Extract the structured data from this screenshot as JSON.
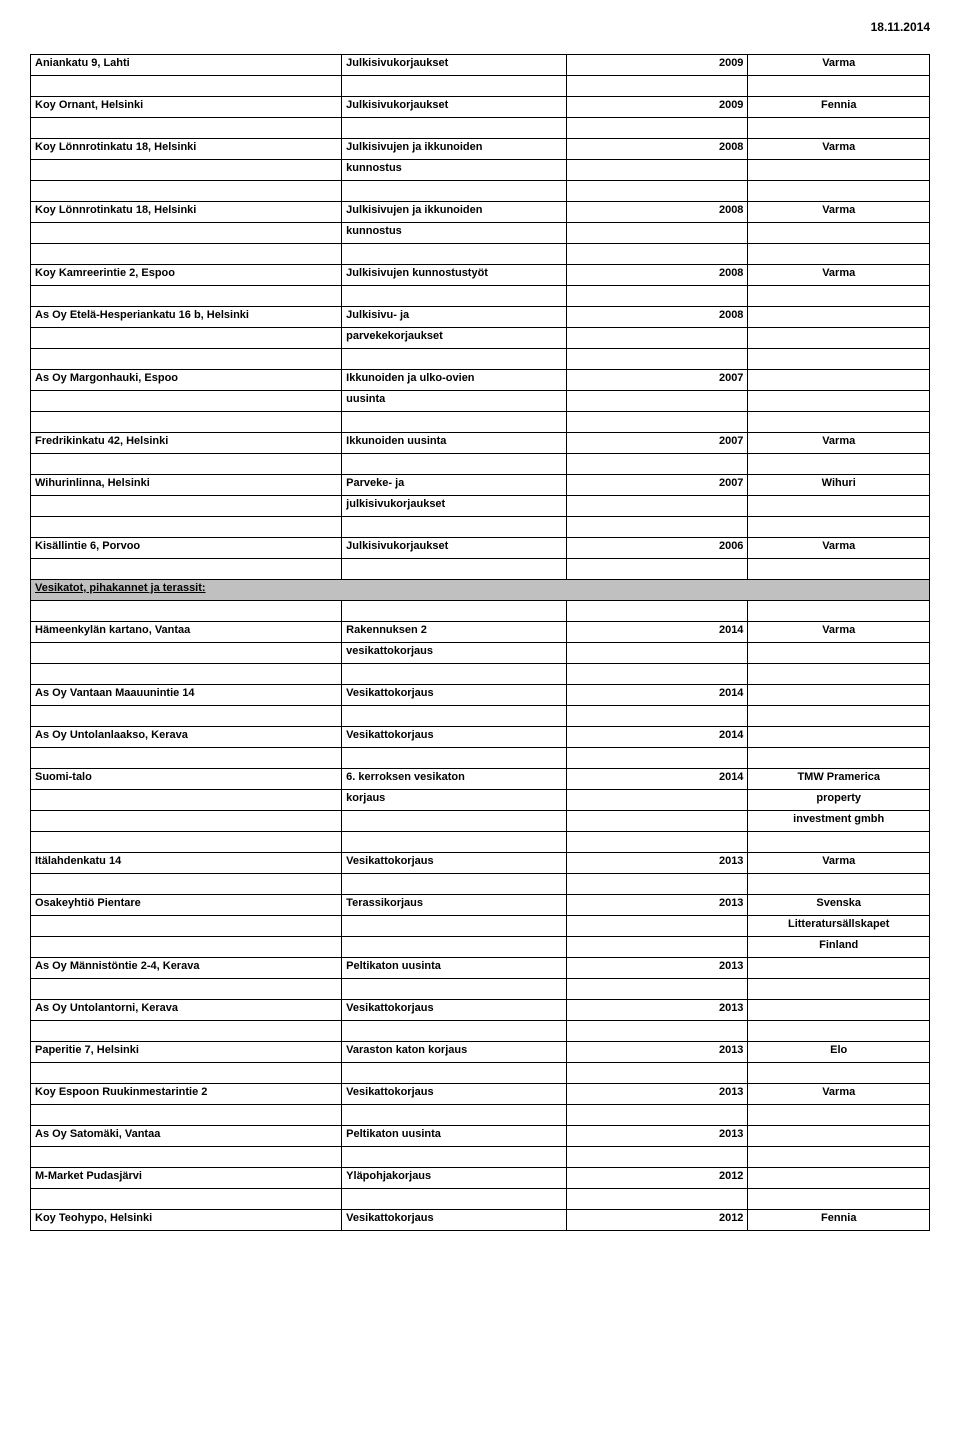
{
  "date": "18.11.2014",
  "section_header": "Vesikatot, pihakannet ja terassit:",
  "rows": [
    {
      "type": "entry",
      "c0": "Aniankatu 9, Lahti",
      "c1": "Julkisivukorjaukset",
      "c2": "2009",
      "c3": "Varma"
    },
    {
      "type": "blank"
    },
    {
      "type": "entry",
      "c0": "Koy Ornant, Helsinki",
      "c1": "Julkisivukorjaukset",
      "c2": "2009",
      "c3": "Fennia"
    },
    {
      "type": "blank"
    },
    {
      "type": "entry",
      "c0": "Koy Lönnrotinkatu 18, Helsinki",
      "c1": "Julkisivujen ja ikkunoiden",
      "c2": "2008",
      "c3": "Varma"
    },
    {
      "type": "sub",
      "c1": "kunnostus"
    },
    {
      "type": "blank"
    },
    {
      "type": "entry",
      "c0": "Koy Lönnrotinkatu 18, Helsinki",
      "c1": "Julkisivujen ja ikkunoiden",
      "c2": "2008",
      "c3": "Varma"
    },
    {
      "type": "sub",
      "c1": "kunnostus"
    },
    {
      "type": "blank"
    },
    {
      "type": "entry",
      "c0": "Koy Kamreerintie 2, Espoo",
      "c1": "Julkisivujen kunnostustyöt",
      "c2": "2008",
      "c3": "Varma"
    },
    {
      "type": "blank"
    },
    {
      "type": "entry",
      "c0": "As Oy Etelä-Hesperiankatu 16 b, Helsinki",
      "c1": "Julkisivu- ja",
      "c2": "2008",
      "c3": ""
    },
    {
      "type": "sub",
      "c1": "parvekekorjaukset"
    },
    {
      "type": "blank"
    },
    {
      "type": "entry",
      "c0": "As Oy Margonhauki, Espoo",
      "c1": "Ikkunoiden ja ulko-ovien",
      "c2": "2007",
      "c3": ""
    },
    {
      "type": "sub",
      "c1": "uusinta"
    },
    {
      "type": "blank"
    },
    {
      "type": "entry",
      "c0": "Fredrikinkatu 42, Helsinki",
      "c1": "Ikkunoiden uusinta",
      "c2": "2007",
      "c3": "Varma"
    },
    {
      "type": "blank"
    },
    {
      "type": "entry",
      "c0": "Wihurinlinna, Helsinki",
      "c1": "Parveke- ja",
      "c2": "2007",
      "c3": "Wihuri"
    },
    {
      "type": "sub",
      "c1": "julkisivukorjaukset"
    },
    {
      "type": "blank"
    },
    {
      "type": "entry",
      "c0": "Kisällintie 6, Porvoo",
      "c1": "Julkisivukorjaukset",
      "c2": "2006",
      "c3": "Varma"
    },
    {
      "type": "blank"
    },
    {
      "type": "section"
    },
    {
      "type": "blank"
    },
    {
      "type": "entry",
      "c0": "Hämeenkylän kartano, Vantaa",
      "c1": "Rakennuksen 2",
      "c2": "2014",
      "c3": "Varma"
    },
    {
      "type": "sub",
      "c1": "vesikattokorjaus"
    },
    {
      "type": "blank"
    },
    {
      "type": "entry",
      "c0": "As Oy Vantaan Maauunintie 14",
      "c1": "Vesikattokorjaus",
      "c2": "2014",
      "c3": ""
    },
    {
      "type": "blank"
    },
    {
      "type": "entry",
      "c0": "As Oy Untolanlaakso, Kerava",
      "c1": "Vesikattokorjaus",
      "c2": "2014",
      "c3": ""
    },
    {
      "type": "blank"
    },
    {
      "type": "entry",
      "c0": "Suomi-talo",
      "c1": "6. kerroksen vesikaton",
      "c2": "2014",
      "c3": "TMW Pramerica"
    },
    {
      "type": "sub",
      "c1": "korjaus",
      "c3": "property"
    },
    {
      "type": "sub",
      "c3": "investment gmbh"
    },
    {
      "type": "blank"
    },
    {
      "type": "entry",
      "c0": "Itälahdenkatu 14",
      "c1": "Vesikattokorjaus",
      "c2": "2013",
      "c3": "Varma"
    },
    {
      "type": "blank"
    },
    {
      "type": "entry",
      "c0": "Osakeyhtiö Pientare",
      "c1": "Terassikorjaus",
      "c2": "2013",
      "c3": "Svenska"
    },
    {
      "type": "sub",
      "c3": "Litteratursällskapet"
    },
    {
      "type": "sub",
      "c3": "Finland"
    },
    {
      "type": "entry",
      "c0": "As Oy Männistöntie 2-4, Kerava",
      "c1": "Peltikaton uusinta",
      "c2": "2013",
      "c3": ""
    },
    {
      "type": "blank"
    },
    {
      "type": "entry",
      "c0": "As Oy Untolantorni, Kerava",
      "c1": "Vesikattokorjaus",
      "c2": "2013",
      "c3": ""
    },
    {
      "type": "blank"
    },
    {
      "type": "entry",
      "c0": "Paperitie 7, Helsinki",
      "c1": "Varaston katon korjaus",
      "c2": "2013",
      "c3": "Elo"
    },
    {
      "type": "blank"
    },
    {
      "type": "entry",
      "c0": "Koy Espoon Ruukinmestarintie 2",
      "c1": "Vesikattokorjaus",
      "c2": "2013",
      "c3": "Varma"
    },
    {
      "type": "blank"
    },
    {
      "type": "entry",
      "c0": "As Oy Satomäki, Vantaa",
      "c1": "Peltikaton uusinta",
      "c2": "2013",
      "c3": ""
    },
    {
      "type": "blank"
    },
    {
      "type": "entry",
      "c0": "M-Market Pudasjärvi",
      "c1": "Yläpohjakorjaus",
      "c2": "2012",
      "c3": ""
    },
    {
      "type": "blank"
    },
    {
      "type": "entry",
      "c0": "Koy Teohypo, Helsinki",
      "c1": "Vesikattokorjaus",
      "c2": "2012",
      "c3": "Fennia"
    }
  ]
}
